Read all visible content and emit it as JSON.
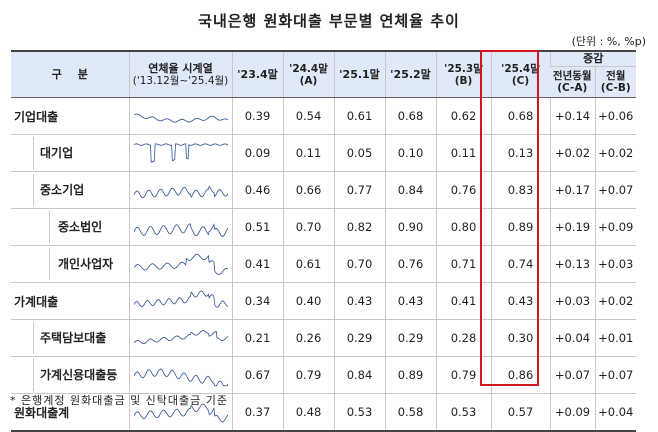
{
  "title": "국내은행 원화대출 부문별 연체율 추이",
  "unit": "(단위 : %, %p)",
  "headers": {
    "category_chars": [
      "구",
      "분"
    ],
    "series_line1": "연체율 시계열",
    "series_line2": "('13.12월~'25.4월)",
    "col_23_4": "'23.4말",
    "col_24_4": "'24.4말",
    "col_24_4_sub": "(A)",
    "col_25_1": "'25.1말",
    "col_25_2": "'25.2말",
    "col_25_3": "'25.3말",
    "col_25_3_sub": "(B)",
    "col_25_4": "'25.4말",
    "col_25_4_sub": "(C)",
    "change_group": "증감",
    "yoy": "전년동월",
    "yoy_sub": "(C-A)",
    "mom": "전월",
    "mom_sub": "(C-B)"
  },
  "rows": [
    {
      "label": "기업대출",
      "level": 0,
      "v": [
        "0.39",
        "0.54",
        "0.61",
        "0.68",
        "0.62",
        "0.68",
        "+0.14",
        "+0.06"
      ]
    },
    {
      "label": "대기업",
      "level": 1,
      "v": [
        "0.09",
        "0.11",
        "0.05",
        "0.10",
        "0.11",
        "0.13",
        "+0.02",
        "+0.02"
      ]
    },
    {
      "label": "중소기업",
      "level": 1,
      "v": [
        "0.46",
        "0.66",
        "0.77",
        "0.84",
        "0.76",
        "0.83",
        "+0.17",
        "+0.07"
      ]
    },
    {
      "label": "중소법인",
      "level": 2,
      "v": [
        "0.51",
        "0.70",
        "0.82",
        "0.90",
        "0.80",
        "0.89",
        "+0.19",
        "+0.09"
      ]
    },
    {
      "label": "개인사업자",
      "level": 2,
      "v": [
        "0.41",
        "0.61",
        "0.70",
        "0.76",
        "0.71",
        "0.74",
        "+0.13",
        "+0.03"
      ]
    },
    {
      "label": "가계대출",
      "level": 0,
      "v": [
        "0.34",
        "0.40",
        "0.43",
        "0.43",
        "0.41",
        "0.43",
        "+0.03",
        "+0.02"
      ]
    },
    {
      "label": "주택담보대출",
      "level": 1,
      "v": [
        "0.21",
        "0.26",
        "0.29",
        "0.29",
        "0.28",
        "0.30",
        "+0.04",
        "+0.01"
      ]
    },
    {
      "label": "가계신용대출등",
      "level": 1,
      "v": [
        "0.67",
        "0.79",
        "0.84",
        "0.89",
        "0.79",
        "0.86",
        "+0.07",
        "+0.07"
      ]
    },
    {
      "label": "원화대출계",
      "level": 0,
      "v": [
        "0.37",
        "0.48",
        "0.53",
        "0.58",
        "0.53",
        "0.57",
        "+0.09",
        "+0.04"
      ]
    }
  ],
  "footnote": "* 은행계정 원화대출금 및 신탁대출금 기준",
  "colors": {
    "header_bg": "#dfe9f7",
    "highlight": "#d0161e",
    "sparkline": "#3a5a98"
  }
}
